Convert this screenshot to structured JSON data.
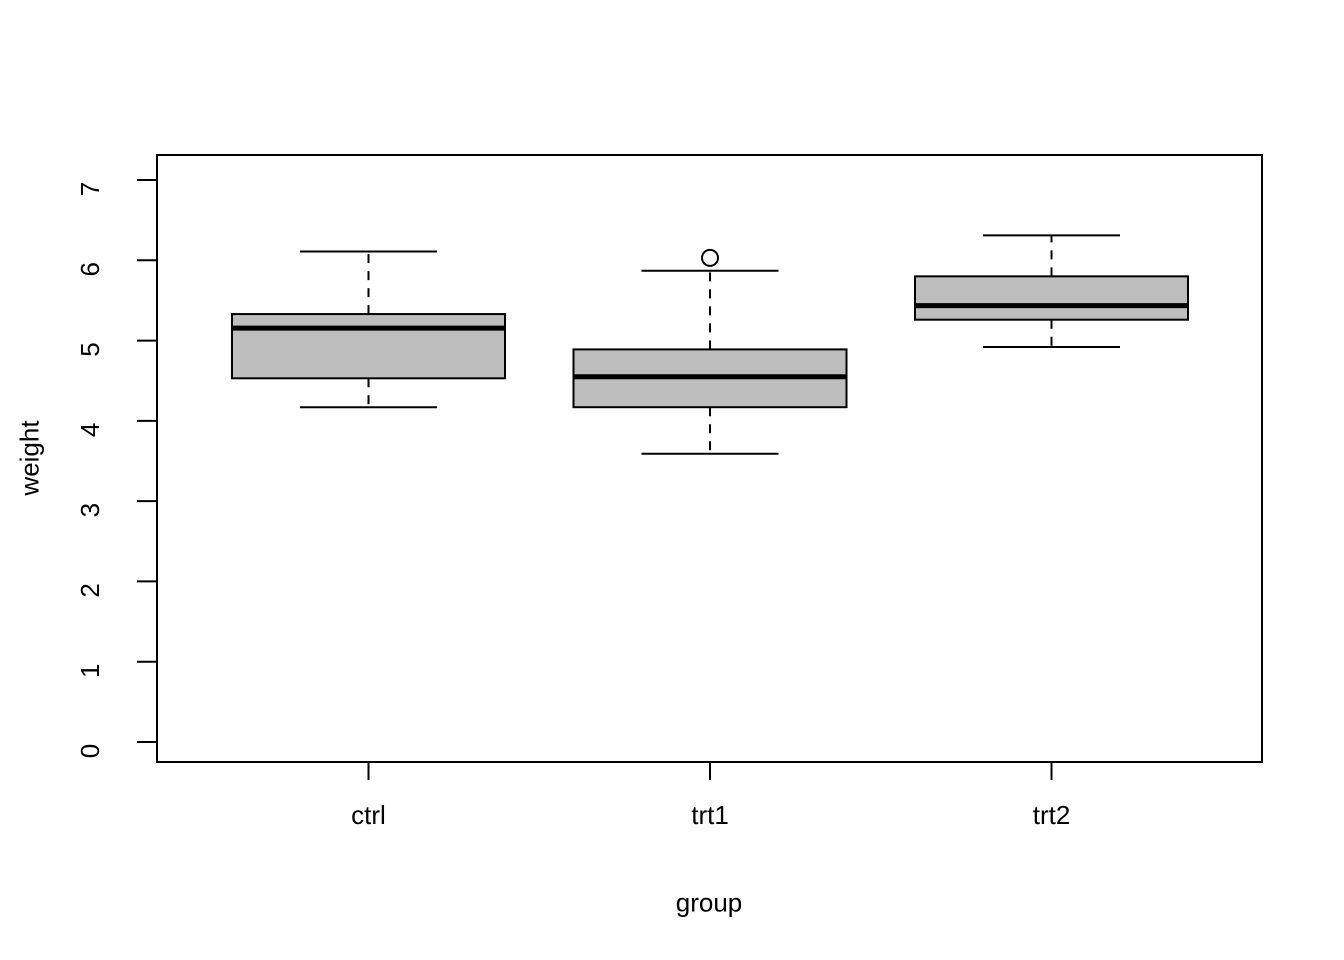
{
  "figure": {
    "background_color": "#ffffff",
    "axis_color": "#000000",
    "box_fill_color": "#bebebe",
    "box_border_color": "#000000",
    "median_color": "#000000",
    "outlier_stroke_color": "#000000"
  },
  "chart_data": {
    "type": "boxplot",
    "title": "",
    "xlabel": "group",
    "ylabel": "weight",
    "categories": [
      "ctrl",
      "trt1",
      "trt2"
    ],
    "y_ticks": [
      0,
      1,
      2,
      3,
      4,
      5,
      6,
      7
    ],
    "ylim": [
      0,
      7
    ],
    "grid": false,
    "legend": "none",
    "series": [
      {
        "name": "ctrl",
        "whisker_low": 4.17,
        "q1": 4.53,
        "median": 5.155,
        "q3": 5.33,
        "whisker_high": 6.11,
        "outliers": []
      },
      {
        "name": "trt1",
        "whisker_low": 3.59,
        "q1": 4.17,
        "median": 4.55,
        "q3": 4.89,
        "whisker_high": 5.87,
        "outliers": [
          6.03
        ]
      },
      {
        "name": "trt2",
        "whisker_low": 4.92,
        "q1": 5.26,
        "median": 5.435,
        "q3": 5.8,
        "whisker_high": 6.31,
        "outliers": []
      }
    ]
  }
}
